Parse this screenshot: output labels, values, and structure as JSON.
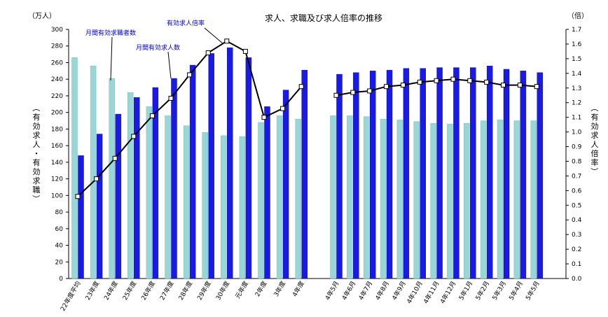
{
  "chart_data": {
    "type": "bar",
    "title": "求人、求職及び求人倍率の推移",
    "left_unit": "（万人）",
    "right_unit": "（倍）",
    "ylabel_left": "（有効求人・有効求職）",
    "ylabel_right": "（有効求人倍率）",
    "ylim_left": [
      0,
      300
    ],
    "ylim_right": [
      0,
      1.7
    ],
    "yticks_left": [
      "0",
      "20",
      "40",
      "60",
      "80",
      "100",
      "120",
      "140",
      "160",
      "180",
      "200",
      "220",
      "240",
      "260",
      "280",
      "300"
    ],
    "yticks_right": [
      "0.0",
      "0.1",
      "0.2",
      "0.3",
      "0.4",
      "0.5",
      "0.6",
      "0.7",
      "0.8",
      "0.9",
      "1.0",
      "1.1",
      "1.2",
      "1.3",
      "1.4",
      "1.5",
      "1.6",
      "1.7"
    ],
    "categories": [
      "22年度平均",
      "23年度",
      "24年度",
      "25年度",
      "26年度",
      "27年度",
      "28年度",
      "29年度",
      "30年度",
      "元年度",
      "2年度",
      "3年度",
      "4年度",
      "4年5月",
      "4年6月",
      "4年7月",
      "4年8月",
      "4年9月",
      "4年10月",
      "4年11月",
      "4年12月",
      "5年1月",
      "5年2月",
      "5年3月",
      "5年4月",
      "5年5月"
    ],
    "series": [
      {
        "name": "月間有効求職者数",
        "color": "#99d6d6",
        "values": [
          266,
          256,
          241,
          224,
          207,
          196,
          184,
          176,
          172,
          171,
          188,
          196,
          192,
          196,
          196,
          195,
          192,
          191,
          189,
          187,
          186,
          187,
          190,
          191,
          190,
          190
        ]
      },
      {
        "name": "月間有効求人数",
        "color": "#1a1ae6",
        "values": [
          148,
          174,
          198,
          218,
          230,
          241,
          257,
          271,
          278,
          266,
          207,
          227,
          251,
          246,
          248,
          250,
          251,
          253,
          253,
          254,
          254,
          254,
          256,
          252,
          250,
          248
        ]
      },
      {
        "name": "有効求人倍率",
        "color": "#000000",
        "axis": "right",
        "values": [
          0.56,
          0.68,
          0.82,
          0.97,
          1.11,
          1.23,
          1.39,
          1.54,
          1.62,
          1.55,
          1.1,
          1.16,
          1.31,
          1.25,
          1.27,
          1.28,
          1.31,
          1.32,
          1.34,
          1.35,
          1.36,
          1.35,
          1.34,
          1.32,
          1.32,
          1.31
        ]
      }
    ],
    "legend": "annotations"
  }
}
